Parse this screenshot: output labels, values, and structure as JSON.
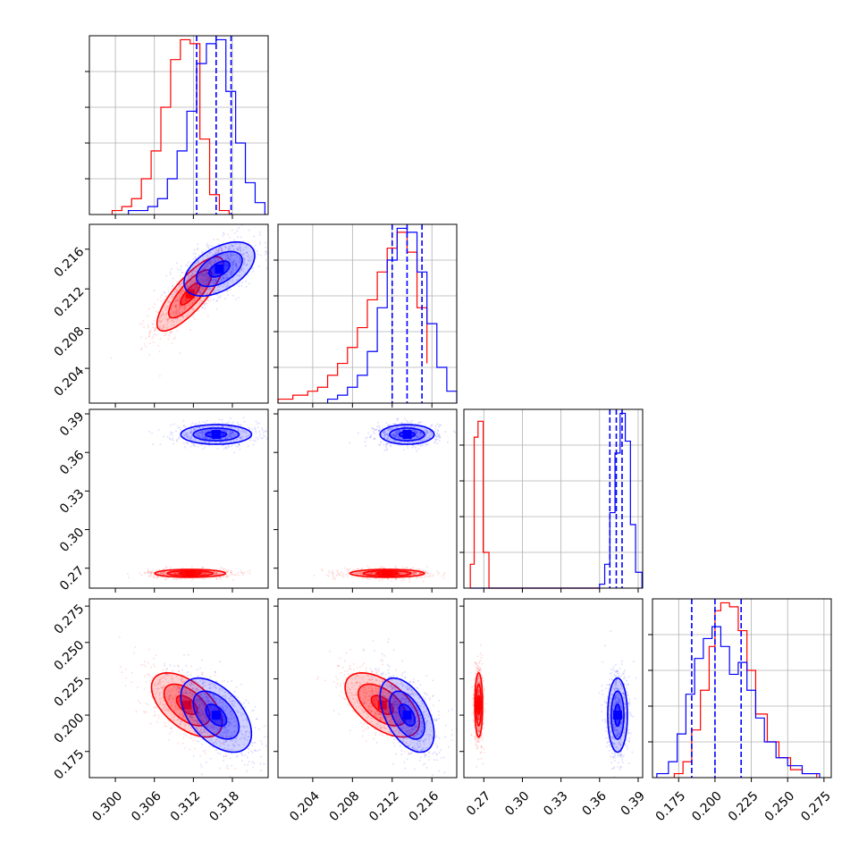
{
  "chart_data": {
    "type": "corner",
    "colors": {
      "red": "#ff0000",
      "blue": "#0000ff"
    },
    "grid": true,
    "legend": "none",
    "series": [
      {
        "color": "red",
        "mean": [
          0.3115,
          0.2115,
          0.265,
          0.206
        ]
      },
      {
        "color": "blue",
        "mean": [
          0.3155,
          0.2135,
          0.374,
          0.2
        ]
      }
    ],
    "params": [
      {
        "id": "p1",
        "range": [
          0.296,
          0.3235
        ],
        "ticks": [
          0.3,
          0.306,
          0.312,
          0.318
        ],
        "tick_labels": [
          "0.300",
          "0.306",
          "0.312",
          "0.318"
        ]
      },
      {
        "id": "p2",
        "range": [
          0.2005,
          0.2185
        ],
        "ticks": [
          0.204,
          0.208,
          0.212,
          0.216
        ],
        "tick_labels": [
          "0.204",
          "0.208",
          "0.212",
          "0.216"
        ]
      },
      {
        "id": "p3",
        "range": [
          0.2545,
          0.3935
        ],
        "ticks": [
          0.27,
          0.3,
          0.33,
          0.36,
          0.39
        ],
        "tick_labels": [
          "0.27",
          "0.30",
          "0.33",
          "0.36",
          "0.39"
        ]
      },
      {
        "id": "p4",
        "range": [
          0.157,
          0.28
        ],
        "ticks": [
          0.175,
          0.2,
          0.225,
          0.25,
          0.275
        ],
        "tick_labels": [
          "0.175",
          "0.200",
          "0.225",
          "0.250",
          "0.275"
        ]
      }
    ],
    "quantiles": [
      [
        0.3125,
        0.3155,
        0.3178
      ],
      [
        0.212,
        0.2135,
        0.215
      ],
      [
        0.368,
        0.373,
        0.3775
      ],
      [
        0.184,
        0.2,
        0.218
      ]
    ],
    "histograms": [
      {
        "red": {
          "edges": [
            0.2995,
            0.301,
            0.3025,
            0.304,
            0.3055,
            0.307,
            0.3085,
            0.31,
            0.3115,
            0.313,
            0.3145,
            0.316,
            0.3175
          ],
          "values": [
            1,
            2,
            4,
            9,
            16,
            27,
            39,
            44,
            43,
            19,
            5,
            1
          ]
        },
        "blue": {
          "edges": [
            0.302,
            0.3035,
            0.305,
            0.3065,
            0.308,
            0.3095,
            0.311,
            0.3125,
            0.314,
            0.3155,
            0.317,
            0.3185,
            0.32,
            0.3215,
            0.323
          ],
          "values": [
            1,
            1,
            2,
            4,
            9,
            16,
            26,
            38,
            43,
            44,
            31,
            18,
            8,
            3
          ]
        }
      },
      {
        "red": {
          "edges": [
            0.2005,
            0.202,
            0.2035,
            0.2045,
            0.2055,
            0.2065,
            0.2075,
            0.2085,
            0.2095,
            0.2105,
            0.2115,
            0.2125,
            0.2135,
            0.2145,
            0.2155
          ],
          "values": [
            1,
            2,
            3,
            4,
            7,
            10,
            14,
            19,
            26,
            33,
            39,
            43,
            38,
            24,
            10
          ]
        },
        "blue": {
          "edges": [
            0.2055,
            0.2065,
            0.2075,
            0.2085,
            0.2095,
            0.2105,
            0.2115,
            0.2125,
            0.2135,
            0.2145,
            0.2155,
            0.2165,
            0.2175,
            0.2185
          ],
          "values": [
            1,
            2,
            4,
            7,
            13,
            24,
            36,
            44,
            43,
            33,
            20,
            9,
            3
          ]
        }
      },
      {
        "red": {
          "edges": [
            0.2595,
            0.2625,
            0.2655,
            0.2695,
            0.274,
            0.36
          ],
          "values": [
            6,
            38,
            42,
            9,
            0
          ]
        },
        "blue": {
          "edges": [
            0.2595,
            0.36,
            0.364,
            0.368,
            0.372,
            0.376,
            0.38,
            0.384,
            0.388,
            0.393
          ],
          "values": [
            0,
            1,
            6,
            19,
            34,
            44,
            37,
            16,
            4
          ]
        }
      },
      {
        "red": {
          "edges": [
            0.172,
            0.178,
            0.184,
            0.19,
            0.196,
            0.2,
            0.204,
            0.21,
            0.216,
            0.222,
            0.228,
            0.236,
            0.244,
            0.252,
            0.26,
            0.27
          ],
          "values": [
            1,
            4,
            12,
            22,
            33,
            42,
            44,
            43,
            37,
            27,
            16,
            9,
            5,
            2,
            1
          ]
        },
        "blue": {
          "edges": [
            0.16,
            0.168,
            0.174,
            0.18,
            0.186,
            0.192,
            0.198,
            0.204,
            0.21,
            0.216,
            0.222,
            0.228,
            0.234,
            0.242,
            0.25,
            0.26,
            0.272
          ],
          "values": [
            1,
            4,
            11,
            21,
            30,
            35,
            38,
            33,
            26,
            29,
            22,
            15,
            9,
            5,
            3,
            1
          ]
        }
      }
    ],
    "scatter_2d": [
      {
        "x": 0,
        "y": 1,
        "red": {
          "center": [
            0.3115,
            0.2115
          ],
          "sd": [
            0.003,
            0.0022
          ],
          "corr": 0.8,
          "levels": [
            0.5,
            1.1,
            1.7
          ]
        },
        "blue": {
          "center": [
            0.316,
            0.214
          ],
          "sd": [
            0.0032,
            0.0016
          ],
          "corr": 0.5,
          "levels": [
            0.5,
            1.1,
            1.7
          ]
        }
      },
      {
        "x": 0,
        "y": 2,
        "red": {
          "center": [
            0.3115,
            0.266
          ],
          "sd": [
            0.0032,
            0.0018
          ],
          "corr": 0.0,
          "levels": [
            0.5,
            1.1,
            1.7
          ]
        },
        "blue": {
          "center": [
            0.3155,
            0.374
          ],
          "sd": [
            0.0032,
            0.0045
          ],
          "corr": 0.0,
          "levels": [
            0.5,
            1.1,
            1.7
          ]
        }
      },
      {
        "x": 1,
        "y": 2,
        "red": {
          "center": [
            0.2115,
            0.266
          ],
          "sd": [
            0.0022,
            0.0018
          ],
          "corr": 0.0,
          "levels": [
            0.5,
            1.1,
            1.7
          ]
        },
        "blue": {
          "center": [
            0.2135,
            0.374
          ],
          "sd": [
            0.0016,
            0.0045
          ],
          "corr": 0.0,
          "levels": [
            0.5,
            1.1,
            1.7
          ]
        }
      },
      {
        "x": 0,
        "y": 3,
        "red": {
          "center": [
            0.311,
            0.207
          ],
          "sd": [
            0.0032,
            0.013
          ],
          "corr": -0.55,
          "levels": [
            0.5,
            1.1,
            1.7
          ]
        },
        "blue": {
          "center": [
            0.3155,
            0.2
          ],
          "sd": [
            0.0032,
            0.015
          ],
          "corr": -0.5,
          "levels": [
            0.5,
            1.1,
            1.7
          ]
        }
      },
      {
        "x": 1,
        "y": 3,
        "red": {
          "center": [
            0.211,
            0.207
          ],
          "sd": [
            0.0022,
            0.013
          ],
          "corr": -0.55,
          "levels": [
            0.5,
            1.1,
            1.7
          ]
        },
        "blue": {
          "center": [
            0.2135,
            0.2
          ],
          "sd": [
            0.0016,
            0.015
          ],
          "corr": -0.5,
          "levels": [
            0.5,
            1.1,
            1.7
          ]
        }
      },
      {
        "x": 2,
        "y": 3,
        "red": {
          "center": [
            0.266,
            0.207
          ],
          "sd": [
            0.0018,
            0.013
          ],
          "corr": 0.0,
          "levels": [
            0.5,
            1.1,
            1.7
          ]
        },
        "blue": {
          "center": [
            0.374,
            0.2
          ],
          "sd": [
            0.0045,
            0.015
          ],
          "corr": 0.0,
          "levels": [
            0.5,
            1.1,
            1.7
          ]
        }
      }
    ]
  }
}
